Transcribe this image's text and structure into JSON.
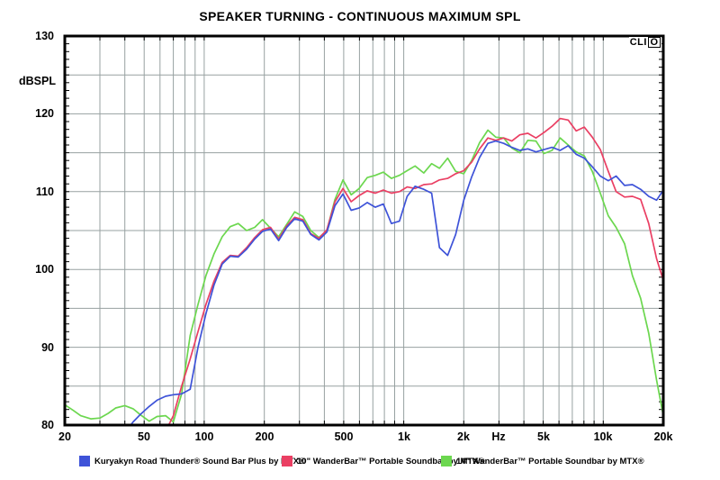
{
  "title": "SPEAKER TURNING - CONTINUOUS MAXIMUM SPL",
  "clio": {
    "prefix": "CLI",
    "o": "O"
  },
  "axes": {
    "y_unit": "dBSPL",
    "x_unit": "Hz",
    "y_tick_labels": [
      "130",
      "120",
      "110",
      "100",
      "90",
      "80"
    ],
    "x_tick_labels": [
      "20",
      "50",
      "100",
      "200",
      "500",
      "1k",
      "2k",
      "Hz",
      "5k",
      "10k",
      "20k"
    ]
  },
  "chart_data": {
    "type": "line",
    "title": "SPEAKER TURNING - CONTINUOUS MAXIMUM SPL",
    "ylabel": "dBSPL",
    "xlabel": "Hz",
    "x_scale": "log",
    "xlim": [
      20,
      20000
    ],
    "ylim": [
      80,
      130
    ],
    "grid": true,
    "legend_position": "bottom",
    "grid_color": "#97a1a1",
    "x_major_ticks": [
      {
        "f": 20,
        "label": "20"
      },
      {
        "f": 50,
        "label": "50"
      },
      {
        "f": 100,
        "label": "100"
      },
      {
        "f": 200,
        "label": "200"
      },
      {
        "f": 500,
        "label": "500"
      },
      {
        "f": 1000,
        "label": "1k"
      },
      {
        "f": 2000,
        "label": "2k"
      },
      {
        "f": 3000,
        "label": "Hz"
      },
      {
        "f": 5000,
        "label": "5k"
      },
      {
        "f": 10000,
        "label": "10k"
      },
      {
        "f": 20000,
        "label": "20k"
      }
    ],
    "y_major_ticks": [
      130,
      120,
      110,
      100,
      90,
      80
    ],
    "x_gridlines": [
      30,
      40,
      50,
      60,
      70,
      80,
      90,
      100,
      200,
      300,
      400,
      500,
      600,
      700,
      800,
      900,
      1000,
      2000,
      3000,
      4000,
      5000,
      6000,
      7000,
      8000,
      9000,
      10000
    ],
    "y_gridlines": [
      85,
      90,
      95,
      100,
      105,
      110,
      115,
      120,
      125
    ],
    "x": [
      20,
      22,
      24,
      27,
      30,
      33,
      36,
      40,
      44,
      48,
      53,
      58,
      64,
      70,
      77,
      85,
      93,
      102,
      112,
      123,
      135,
      148,
      163,
      179,
      196,
      215,
      236,
      259,
      284,
      312,
      342,
      376,
      412,
      452,
      496,
      545,
      598,
      656,
      720,
      790,
      867,
      951,
      1040,
      1140,
      1260,
      1380,
      1510,
      1660,
      1820,
      2000,
      2190,
      2400,
      2640,
      2890,
      3170,
      3480,
      3820,
      4190,
      4600,
      5050,
      5540,
      6080,
      6670,
      7320,
      8030,
      8810,
      9670,
      10600,
      11600,
      12800,
      14000,
      15400,
      16900,
      18500,
      20000
    ],
    "series": [
      {
        "name": "Kuryakyn Road Thunder® Sound Bar Plus by MTX®",
        "color": "#3e53d8",
        "values": [
          null,
          null,
          null,
          null,
          null,
          null,
          null,
          79.0,
          80.4,
          81.4,
          82.4,
          83.2,
          83.7,
          83.9,
          84.0,
          84.6,
          90.0,
          94.3,
          98.0,
          100.7,
          101.7,
          101.6,
          102.6,
          103.9,
          104.9,
          105.2,
          103.7,
          105.4,
          106.5,
          106.2,
          104.5,
          103.8,
          104.8,
          108.2,
          109.7,
          107.6,
          107.9,
          108.6,
          108.0,
          108.4,
          105.9,
          106.2,
          109.4,
          110.7,
          110.3,
          109.8,
          102.8,
          101.8,
          104.5,
          108.9,
          111.9,
          114.4,
          116.2,
          116.5,
          116.2,
          115.7,
          115.3,
          115.5,
          115.1,
          115.4,
          115.7,
          115.3,
          115.9,
          114.8,
          114.3,
          113.2,
          112.0,
          111.4,
          112.0,
          110.8,
          110.9,
          110.3,
          109.4,
          108.9,
          110.2
        ]
      },
      {
        "name": "10\" WanderBar™ Portable Soundbar by MTX®",
        "color": "#ea3f63",
        "values": [
          null,
          null,
          null,
          null,
          null,
          null,
          null,
          null,
          null,
          null,
          null,
          null,
          79.2,
          81.2,
          85.0,
          88.5,
          92.0,
          95.5,
          98.5,
          100.9,
          101.8,
          101.7,
          102.8,
          104.1,
          105.1,
          105.4,
          103.9,
          105.6,
          106.7,
          106.4,
          104.6,
          104.0,
          105.1,
          108.7,
          110.4,
          108.7,
          109.5,
          110.1,
          109.8,
          110.2,
          109.8,
          110.0,
          110.6,
          110.4,
          110.9,
          111.0,
          111.5,
          111.7,
          112.3,
          112.7,
          113.8,
          115.5,
          116.9,
          116.6,
          116.9,
          116.5,
          117.3,
          117.5,
          116.9,
          117.6,
          118.4,
          119.4,
          119.2,
          117.8,
          118.3,
          117.0,
          115.4,
          112.6,
          110.0,
          109.3,
          109.4,
          109.0,
          105.9,
          101.4,
          98.6
        ]
      },
      {
        "name": "14\" WanderBar™ Portable Soundbar by MTX®",
        "color": "#6cd74f",
        "values": [
          82.6,
          81.9,
          81.2,
          80.8,
          80.9,
          81.5,
          82.2,
          82.5,
          82.1,
          81.3,
          80.5,
          81.1,
          81.2,
          80.4,
          84.0,
          91.5,
          95.5,
          99.2,
          102.0,
          104.2,
          105.5,
          105.9,
          105.0,
          105.4,
          106.4,
          105.3,
          104.2,
          105.8,
          107.4,
          106.8,
          105.0,
          104.1,
          105.0,
          109.0,
          111.5,
          109.6,
          110.4,
          111.8,
          112.1,
          112.5,
          111.7,
          112.1,
          112.7,
          113.3,
          112.4,
          113.6,
          113.0,
          114.3,
          112.6,
          112.3,
          114.0,
          116.3,
          117.9,
          117.0,
          116.9,
          115.6,
          115.0,
          116.6,
          116.5,
          114.9,
          115.3,
          116.9,
          116.0,
          115.1,
          114.6,
          112.6,
          109.8,
          106.9,
          105.4,
          103.3,
          99.2,
          96.3,
          91.8,
          85.8,
          81.2
        ]
      }
    ]
  }
}
